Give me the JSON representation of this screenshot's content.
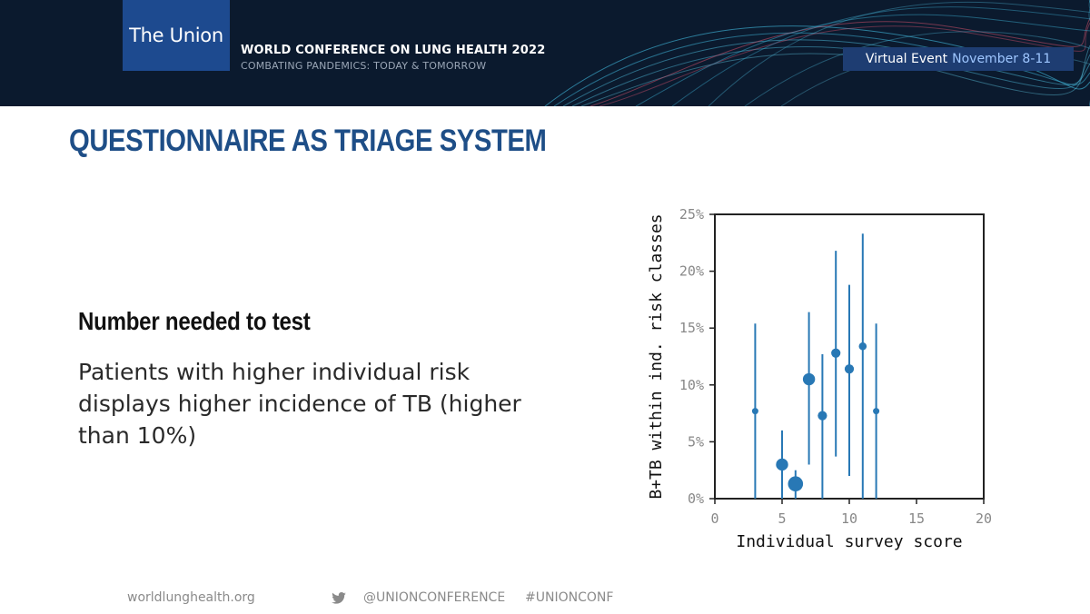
{
  "header": {
    "logo_text": "The Union",
    "conference_title": "WORLD CONFERENCE ON LUNG HEALTH 2022",
    "conference_subtitle": "COMBATING PANDEMICS: TODAY & TOMORROW",
    "event_label": "Virtual Event",
    "event_dates": "November 8-11"
  },
  "slide": {
    "title": "QUESTIONNAIRE AS TRIAGE SYSTEM",
    "subheading": "Number needed to test",
    "body": "Patients with higher individual risk displays higher incidence of TB (higher than 10%)"
  },
  "chart_data": {
    "type": "scatter",
    "xlabel": "Individual survey score",
    "ylabel": "B+TB within ind. risk classes",
    "xlim": [
      0,
      20
    ],
    "ylim": [
      0,
      25
    ],
    "x_ticks": [
      "0",
      "5",
      "10",
      "15",
      "20"
    ],
    "y_ticks": [
      "0%",
      "5%",
      "10%",
      "15%",
      "20%",
      "25%"
    ],
    "grid": false,
    "point_color": "#2878b5",
    "points": [
      {
        "x": 3,
        "y": 7.7,
        "err_low": 0,
        "err_high": 15.4,
        "relative_size": 1
      },
      {
        "x": 5,
        "y": 3.0,
        "err_low": 0,
        "err_high": 6.0,
        "relative_size": 3
      },
      {
        "x": 6,
        "y": 1.3,
        "err_low": 0,
        "err_high": 2.5,
        "relative_size": 4
      },
      {
        "x": 7,
        "y": 10.5,
        "err_low": 3.0,
        "err_high": 16.4,
        "relative_size": 3
      },
      {
        "x": 8,
        "y": 7.3,
        "err_low": 0,
        "err_high": 12.7,
        "relative_size": 2
      },
      {
        "x": 9,
        "y": 12.8,
        "err_low": 3.7,
        "err_high": 21.8,
        "relative_size": 2
      },
      {
        "x": 10,
        "y": 11.4,
        "err_low": 2.0,
        "err_high": 18.8,
        "relative_size": 2
      },
      {
        "x": 11,
        "y": 13.4,
        "err_low": 0,
        "err_high": 23.3,
        "relative_size": 1.5
      },
      {
        "x": 12,
        "y": 7.7,
        "err_low": 0,
        "err_high": 15.4,
        "relative_size": 1
      }
    ]
  },
  "footer": {
    "website": "worldlunghealth.org",
    "twitter_handle": "@UNIONCONFERENCE",
    "hashtag": "#UNIONCONF"
  }
}
